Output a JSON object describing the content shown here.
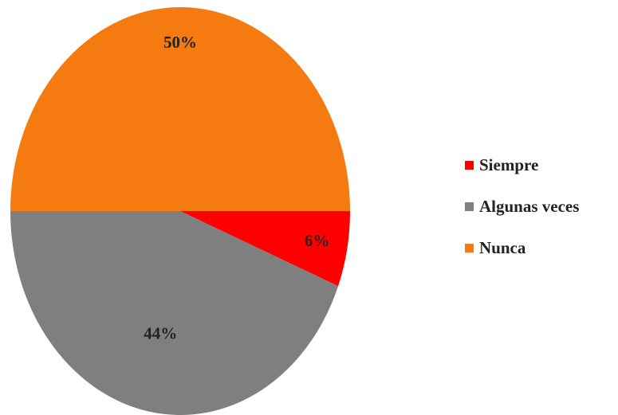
{
  "chart_data": {
    "type": "pie",
    "categories": [
      "Siempre",
      "Algunas veces",
      "Nunca"
    ],
    "values": [
      6,
      44,
      50
    ],
    "value_labels": [
      "6%",
      "44%",
      "50%"
    ],
    "colors": [
      "#ff0000",
      "#7f7f7f",
      "#f57a0f"
    ],
    "title": "",
    "legend_position": "right",
    "start_angle_deg": 0,
    "direction": "clockwise"
  }
}
